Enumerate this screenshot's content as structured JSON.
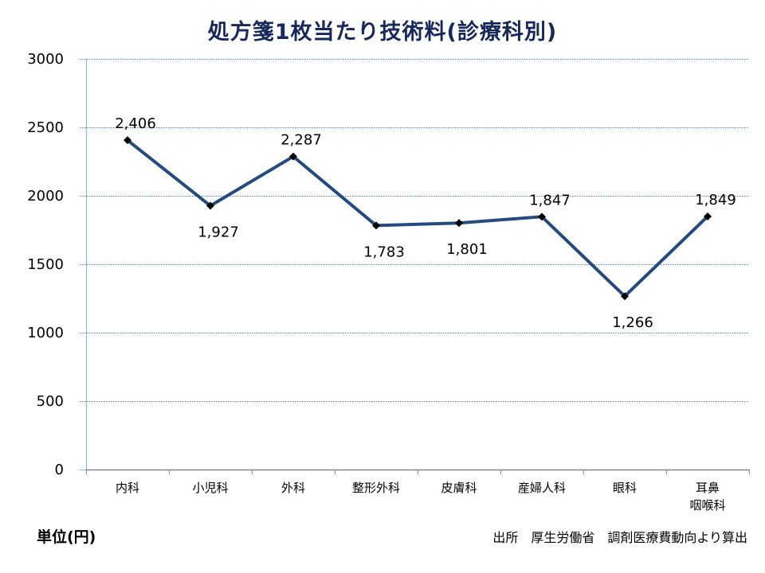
{
  "chart_data": {
    "type": "line",
    "title": "処方箋1枚当たり技術料(診療科別)",
    "xlabel": "",
    "ylabel": "",
    "categories": [
      "内科",
      "小児科",
      "外科",
      "整形外科",
      "皮膚科",
      "産婦人科",
      "眼科",
      "耳鼻\n咽喉科"
    ],
    "series": [
      {
        "name": "技術料",
        "values": [
          2406,
          1927,
          2287,
          1783,
          1801,
          1847,
          1266,
          1849
        ],
        "labels": [
          "2,406",
          "1,927",
          "2,287",
          "1,783",
          "1,801",
          "1,847",
          "1,266",
          "1,849"
        ],
        "label_position": [
          "above",
          "below",
          "above",
          "below",
          "below",
          "above",
          "below",
          "above"
        ]
      }
    ],
    "ylim": [
      0,
      3000
    ],
    "yticks": [
      0,
      500,
      1000,
      1500,
      2000,
      2500,
      3000
    ],
    "grid": true,
    "legend": "none",
    "line_color": "#254a7e",
    "marker": "diamond",
    "marker_color": "#000000",
    "grid_color": "#4f81bd"
  },
  "header": {
    "title": "処方箋1枚当たり技術料(診療科別)"
  },
  "footer": {
    "unit": "単位(円)",
    "source": "出所　厚生労働省　調剤医療費動向より算出"
  }
}
